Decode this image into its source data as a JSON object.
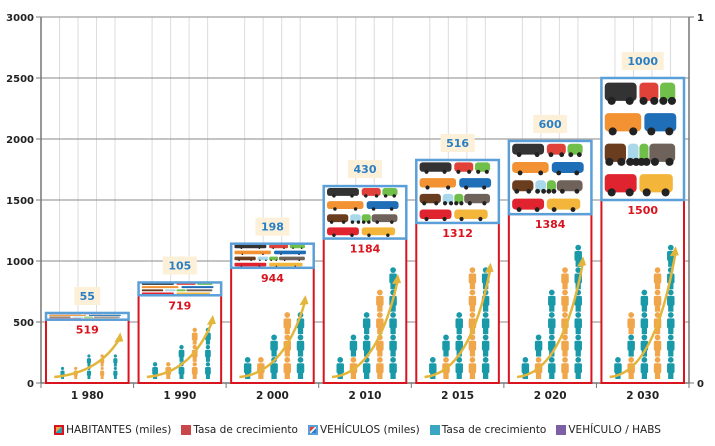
{
  "chart_data": {
    "type": "bar",
    "stacked": true,
    "title": "",
    "xlabel": "",
    "ylabel": "",
    "categories": [
      "1 980",
      "1 990",
      "2 000",
      "2 010",
      "2 015",
      "2 020",
      "2 030"
    ],
    "series": [
      {
        "name": "HABITANTES (miles)",
        "values": [
          519,
          719,
          944,
          1184,
          1312,
          1384,
          1500
        ],
        "color": "#d9141f",
        "fill": "people-pictogram"
      },
      {
        "name": "Tasa de crecimiento",
        "values": [],
        "color": "#c9484c"
      },
      {
        "name": "VEHÍCULOS (miles)",
        "values": [
          55,
          105,
          198,
          430,
          516,
          600,
          1000
        ],
        "color": "#5a9fd8",
        "fill": "vehicles-pictogram"
      },
      {
        "name": "Tasa de crecimiento",
        "values": [],
        "color": "#3aa7c2"
      },
      {
        "name": "VEHÍCULO / HABS",
        "values": [],
        "color": "#7d5fa6"
      }
    ],
    "y_axis_left": {
      "min": 0,
      "max": 3000,
      "ticks": [
        0,
        500,
        1000,
        1500,
        2000,
        2500,
        3000
      ]
    },
    "y_axis_right": {
      "min": 0,
      "max": 1,
      "ticks": [
        0,
        1
      ]
    },
    "grid": true,
    "legend_position": "bottom"
  },
  "legend": {
    "items": [
      {
        "label": "HABITANTES (miles)",
        "icon": "people-pattern-swatch"
      },
      {
        "label": "Tasa de crecimiento",
        "icon": "red-square-swatch"
      },
      {
        "label": "VEHÍCULOS (miles)",
        "icon": "vehicle-pattern-swatch"
      },
      {
        "label": "Tasa de crecimiento",
        "icon": "teal-square-swatch"
      },
      {
        "label": "VEHÍCULO / HABS",
        "icon": "purple-square-swatch"
      }
    ]
  },
  "colors": {
    "habitantes_border": "#d9141f",
    "vehiculos_border": "#5a9fd8",
    "label_bg": "#fdf0d8",
    "person_teal": "#1a9aa8",
    "person_orange": "#f0a64a",
    "arrow": "#e3b53a"
  }
}
